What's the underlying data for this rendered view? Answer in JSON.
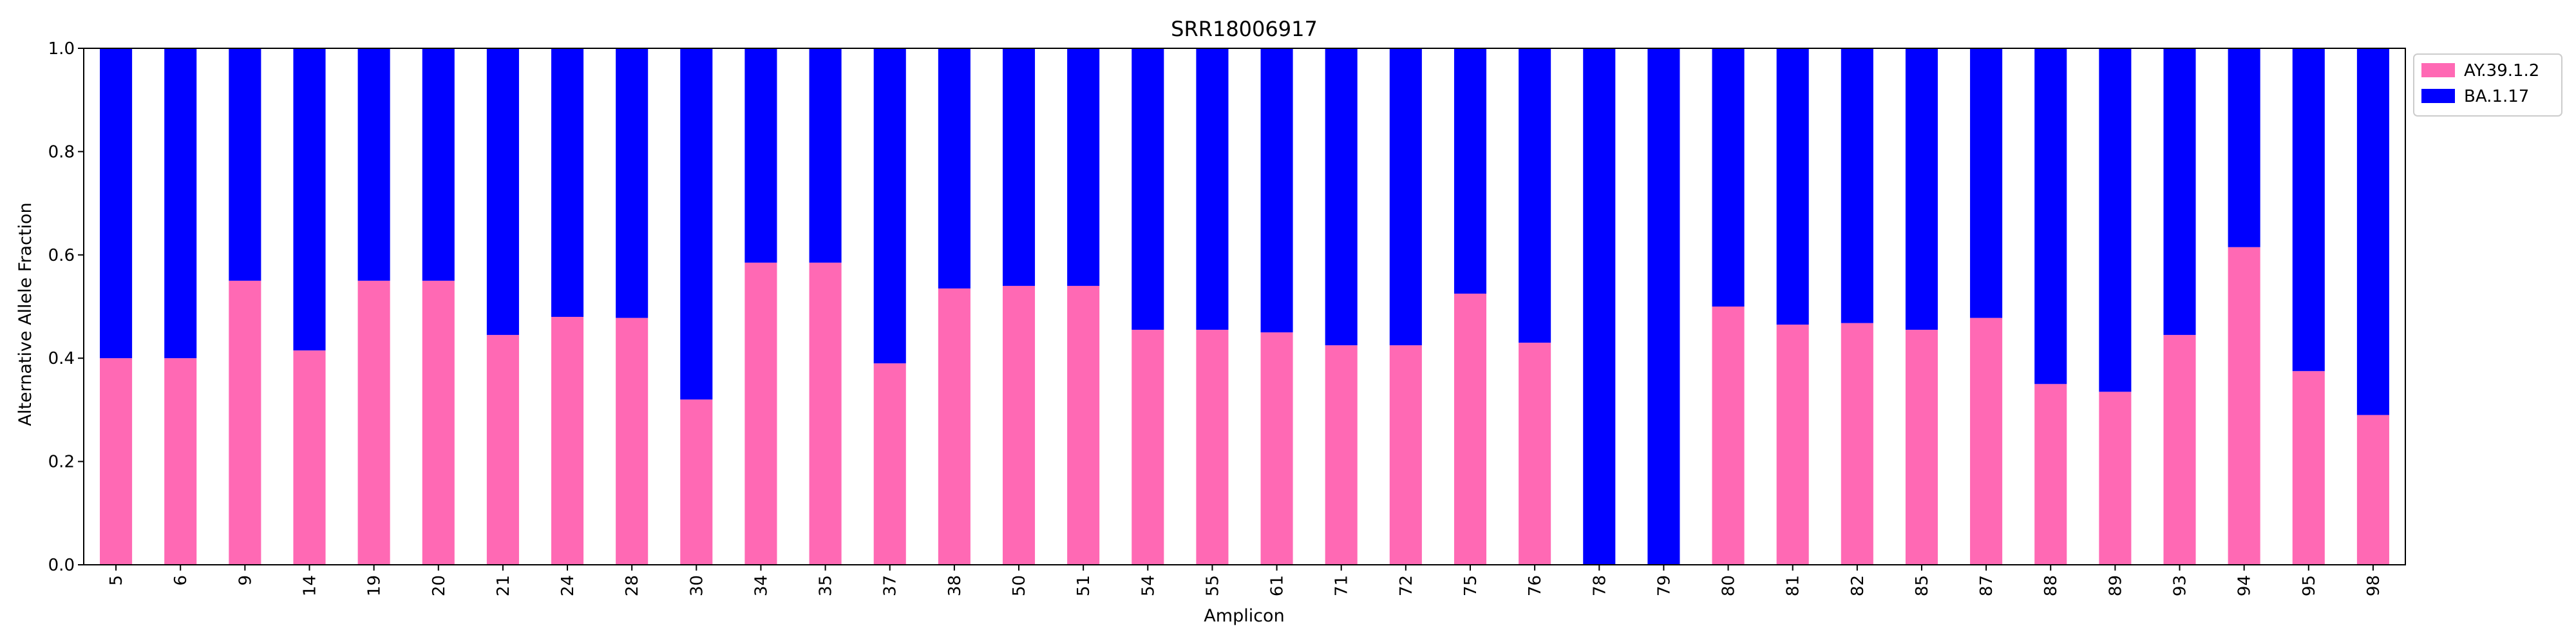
{
  "chart_data": {
    "type": "bar",
    "stacked": true,
    "title": "SRR18006917",
    "xlabel": "Amplicon",
    "ylabel": "Alternative Allele Fraction",
    "ylim": [
      0,
      1.0
    ],
    "yticks": [
      "0.0",
      "0.2",
      "0.4",
      "0.6",
      "0.8",
      "1.0"
    ],
    "categories": [
      "5",
      "6",
      "9",
      "14",
      "19",
      "20",
      "21",
      "24",
      "28",
      "30",
      "34",
      "35",
      "37",
      "38",
      "50",
      "51",
      "54",
      "55",
      "61",
      "71",
      "72",
      "75",
      "76",
      "78",
      "79",
      "80",
      "81",
      "82",
      "85",
      "87",
      "88",
      "89",
      "93",
      "94",
      "95",
      "98"
    ],
    "series": [
      {
        "name": "AY.39.1.2",
        "color": "#ff69b4",
        "values": [
          0.4,
          0.4,
          0.55,
          0.415,
          0.55,
          0.55,
          0.445,
          0.48,
          0.478,
          0.32,
          0.585,
          0.585,
          0.39,
          0.535,
          0.54,
          0.54,
          0.455,
          0.455,
          0.45,
          0.425,
          0.425,
          0.525,
          0.43,
          0.0,
          0.0,
          0.5,
          0.465,
          0.468,
          0.455,
          0.478,
          0.35,
          0.335,
          0.445,
          0.615,
          0.375,
          0.29
        ]
      },
      {
        "name": "BA.1.17",
        "color": "#0000ff",
        "values": [
          0.6,
          0.6,
          0.45,
          0.585,
          0.45,
          0.45,
          0.555,
          0.52,
          0.522,
          0.68,
          0.415,
          0.415,
          0.61,
          0.465,
          0.46,
          0.46,
          0.545,
          0.545,
          0.55,
          0.575,
          0.575,
          0.475,
          0.57,
          1.0,
          1.0,
          0.5,
          0.535,
          0.532,
          0.545,
          0.522,
          0.65,
          0.665,
          0.555,
          0.385,
          0.625,
          0.71
        ]
      }
    ],
    "grid": false,
    "legend_position": "outside-top-right"
  }
}
